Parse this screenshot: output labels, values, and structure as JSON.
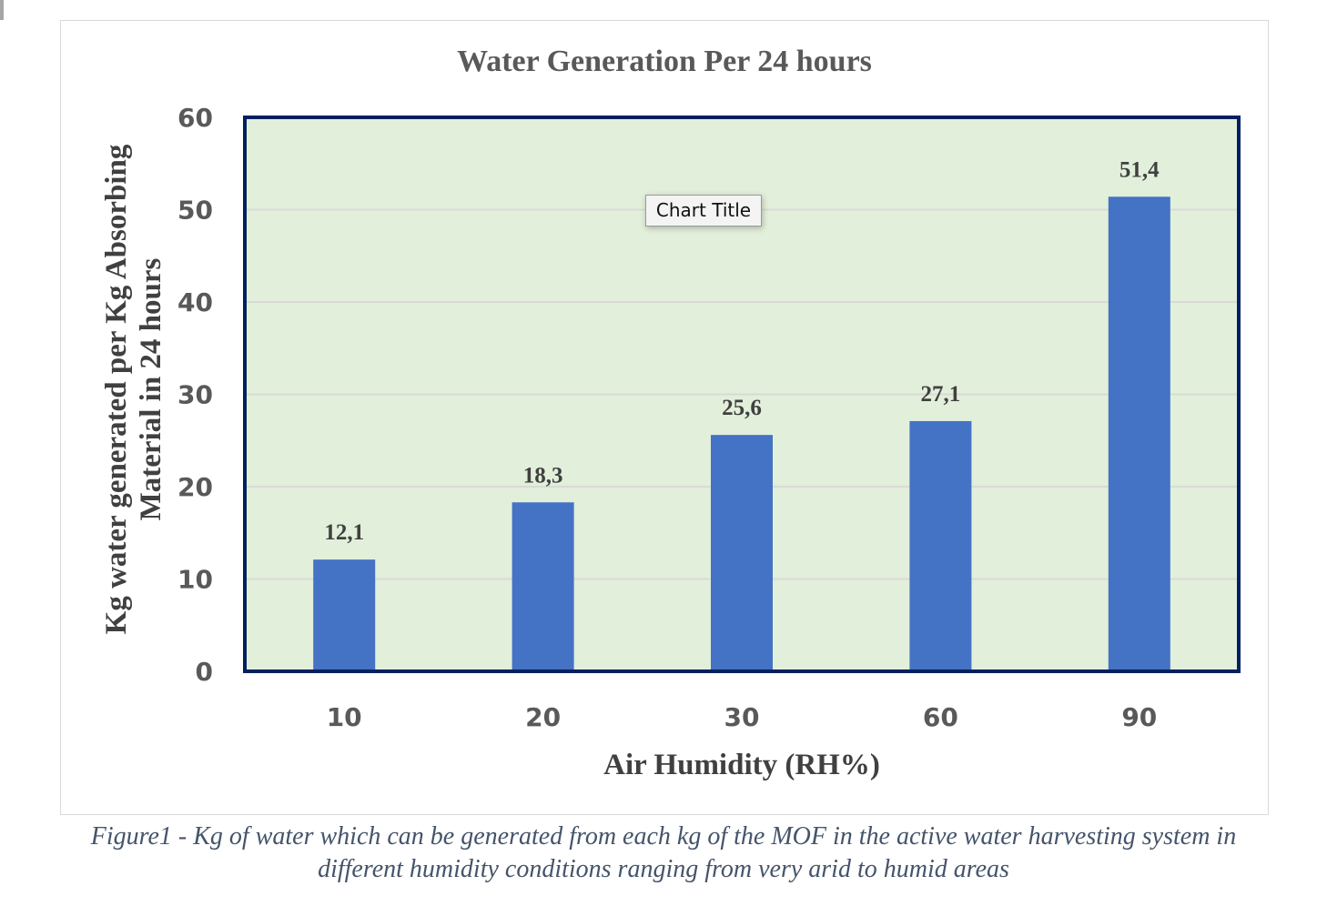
{
  "chart_data": {
    "type": "bar",
    "title": "Water Generation Per 24 hours",
    "xlabel": "Air Humidity (RH%)",
    "ylabel": [
      "Kg water generated per Kg Absorbing",
      "Material  in 24 hours"
    ],
    "categories": [
      "10",
      "20",
      "30",
      "60",
      "90"
    ],
    "values": [
      12.1,
      18.3,
      25.6,
      27.1,
      51.4
    ],
    "data_labels": [
      "12,1",
      "18,3",
      "25,6",
      "27,1",
      "51,4"
    ],
    "ylim": [
      0,
      60
    ],
    "yticks": [
      0,
      10,
      20,
      30,
      40,
      50,
      60
    ],
    "grid": true,
    "legend": "none",
    "colors": {
      "bar": "#4472c4",
      "plot_bg": "#e2efda",
      "plot_border": "#002060",
      "grid": "#d9d9d9"
    }
  },
  "tooltip": "Chart Title",
  "caption": [
    "Figure1 - Kg of water which can be generated from each kg of the MOF in the active water harvesting system in",
    "different humidity conditions ranging from very arid to humid areas"
  ]
}
